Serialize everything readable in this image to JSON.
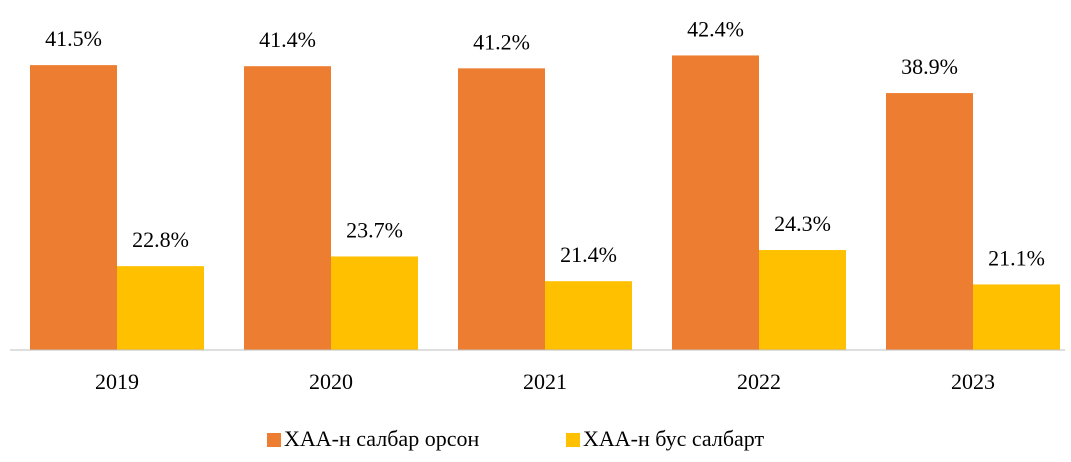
{
  "chart_data": {
    "type": "bar",
    "categories": [
      "2019",
      "2020",
      "2021",
      "2022",
      "2023"
    ],
    "series": [
      {
        "name": "ХАА-н салбар орсон",
        "color": "#ED7D31",
        "values": [
          41.5,
          41.4,
          41.2,
          42.4,
          38.9
        ],
        "value_labels": [
          "41.5%",
          "41.4%",
          "41.2%",
          "42.4%",
          "38.9%"
        ]
      },
      {
        "name": "ХАА-н бус салбарт",
        "color": "#FFC000",
        "values": [
          22.8,
          23.7,
          21.4,
          24.3,
          21.1
        ],
        "value_labels": [
          "22.8%",
          "23.7%",
          "21.4%",
          "24.3%",
          "21.1%"
        ]
      }
    ],
    "ylim": [
      15,
      45
    ],
    "legend": "bottom"
  }
}
